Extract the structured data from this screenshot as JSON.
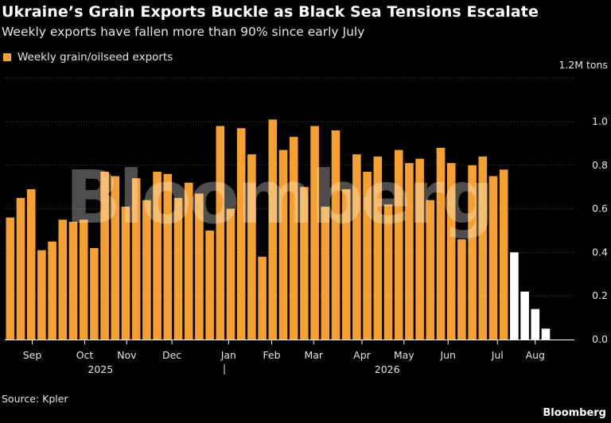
{
  "title": "Ukraine’s Grain Exports Buckle as Black Sea Tensions Escalate",
  "subtitle": "Weekly exports have fallen more than 90% since early July",
  "watermark": "Bloomberg",
  "source": "Source: Kpler",
  "brand": "Bloomberg",
  "colors": {
    "bar": "#f5a031",
    "bar_recent": "#ffffff",
    "grid": "#444444",
    "axis": "#ffffff",
    "background": "#000000"
  },
  "chart_data": {
    "type": "bar",
    "title": "Ukraine’s Grain Exports Buckle as Black Sea Tensions Escalate",
    "subtitle": "Weekly exports have fallen more than 90% since early July",
    "unit_label": "1.2M tons",
    "ylim": [
      0,
      1.2
    ],
    "yticks": [
      "0.0",
      "0.2",
      "0.4",
      "0.6",
      "0.8",
      "1.0"
    ],
    "grid": true,
    "legend": {
      "placement": "top-left",
      "entries": [
        "Weekly grain/oilseed exports"
      ]
    },
    "series": [
      {
        "name": "Weekly grain/oilseed exports",
        "values": [
          0.56,
          0.65,
          0.69,
          0.41,
          0.45,
          0.55,
          0.54,
          0.55,
          0.42,
          0.77,
          0.75,
          0.61,
          0.74,
          0.64,
          0.77,
          0.76,
          0.65,
          0.72,
          0.67,
          0.5,
          0.98,
          0.6,
          0.97,
          0.85,
          0.38,
          1.01,
          0.87,
          0.93,
          0.7,
          0.98,
          0.61,
          0.96,
          0.69,
          0.85,
          0.77,
          0.84,
          0.62,
          0.87,
          0.81,
          0.83,
          0.64,
          0.88,
          0.81,
          0.46,
          0.8,
          0.84,
          0.75,
          0.78,
          0.4,
          0.22,
          0.14,
          0.05
        ]
      }
    ],
    "highlight_last_n": 4,
    "month_labels": [
      {
        "label": "Sep",
        "bar": 2.5
      },
      {
        "label": "Oct",
        "bar": 7.5
      },
      {
        "label": "Nov",
        "bar": 11.5
      },
      {
        "label": "Dec",
        "bar": 15.8
      },
      {
        "label": "Jan",
        "bar": 21.2
      },
      {
        "label": "Feb",
        "bar": 25.3
      },
      {
        "label": "Mar",
        "bar": 29.3
      },
      {
        "label": "Apr",
        "bar": 33.9
      },
      {
        "label": "May",
        "bar": 37.9
      },
      {
        "label": "Jun",
        "bar": 42.1
      },
      {
        "label": "Jul",
        "bar": 46.8
      },
      {
        "label": "Aug",
        "bar": 50.4
      }
    ],
    "year_labels": [
      {
        "label": "2025",
        "bar": 9.0
      },
      {
        "label": "2026",
        "bar": 36.3
      }
    ],
    "year_divider_bar": 20.8
  }
}
